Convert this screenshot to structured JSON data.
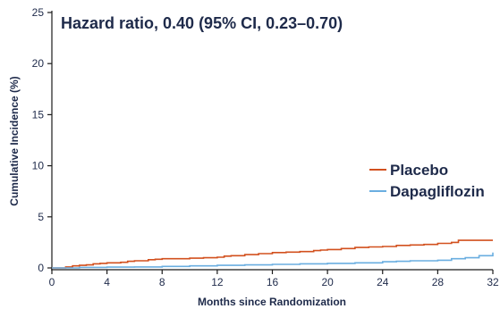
{
  "chart_data": {
    "type": "line",
    "step": true,
    "annotation": "Hazard ratio, 0.40 (95% CI, 0.23–0.70)",
    "xlabel": "Months since Randomization",
    "ylabel": "Cumulative Incidence (%)",
    "xlim": [
      0,
      32
    ],
    "ylim": [
      0,
      25
    ],
    "xticks": [
      0,
      4,
      8,
      12,
      16,
      20,
      24,
      28,
      32
    ],
    "yticks": [
      0,
      5,
      10,
      15,
      20,
      25
    ],
    "grid": false,
    "legend_position": "right",
    "series": [
      {
        "name": "Placebo",
        "color": "#d2501e",
        "x": [
          0,
          1,
          1.5,
          2,
          2.5,
          3,
          3.5,
          4,
          5,
          5.5,
          6,
          7,
          7.5,
          8,
          10,
          11,
          12,
          12.5,
          13,
          14,
          15,
          16,
          17,
          18,
          19,
          19.5,
          20,
          21,
          22,
          23,
          24,
          25,
          26,
          27,
          28,
          29,
          29.5,
          32
        ],
        "y": [
          0,
          0.1,
          0.2,
          0.25,
          0.3,
          0.4,
          0.45,
          0.5,
          0.55,
          0.65,
          0.7,
          0.8,
          0.85,
          0.9,
          0.95,
          1.0,
          1.05,
          1.15,
          1.2,
          1.3,
          1.4,
          1.5,
          1.55,
          1.6,
          1.7,
          1.75,
          1.8,
          1.9,
          2.0,
          2.05,
          2.1,
          2.2,
          2.25,
          2.3,
          2.4,
          2.5,
          2.7,
          2.7
        ]
      },
      {
        "name": "Dapagliflozin",
        "color": "#6aaee0",
        "x": [
          0,
          2,
          4,
          6,
          8,
          10,
          12,
          14,
          16,
          18,
          20,
          22,
          24,
          25,
          26,
          28,
          29,
          30,
          31,
          32
        ],
        "y": [
          0,
          0.05,
          0.08,
          0.1,
          0.15,
          0.2,
          0.25,
          0.3,
          0.35,
          0.4,
          0.45,
          0.5,
          0.6,
          0.65,
          0.7,
          0.75,
          0.9,
          1.0,
          1.2,
          1.5
        ]
      }
    ]
  }
}
